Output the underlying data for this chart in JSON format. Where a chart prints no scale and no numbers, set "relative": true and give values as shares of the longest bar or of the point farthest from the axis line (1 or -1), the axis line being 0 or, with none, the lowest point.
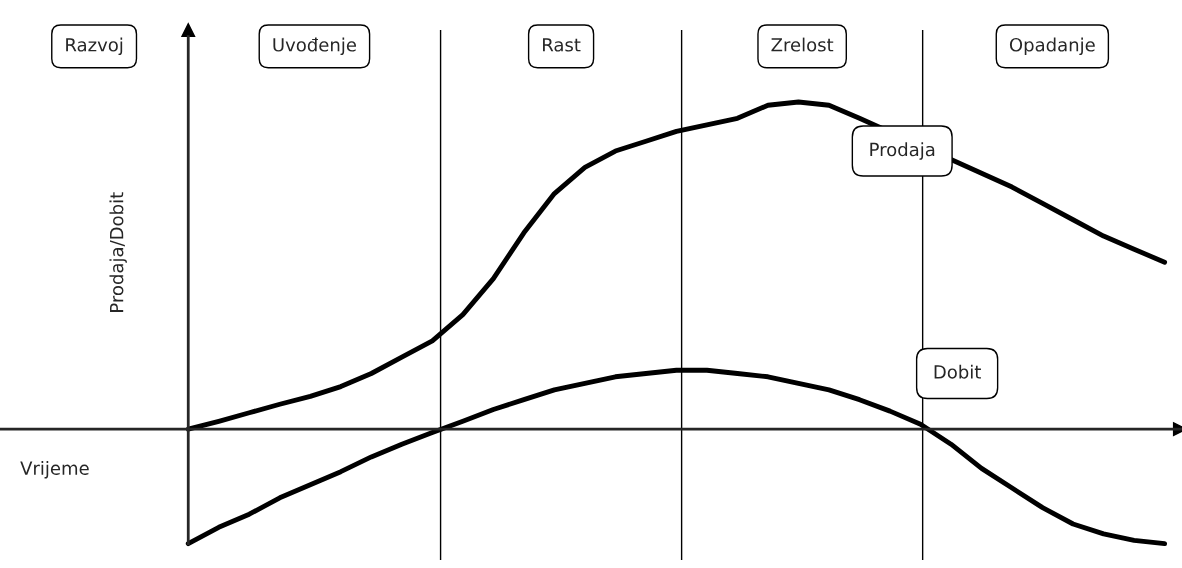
{
  "chart_data": {
    "type": "line",
    "relative": true,
    "xlabel": "Vrijeme",
    "ylabel": "Prodaja/Dobit",
    "categories": [
      null,
      null,
      null,
      null,
      null,
      null,
      null,
      null,
      null,
      null,
      null,
      null,
      null,
      null,
      null,
      null,
      null,
      null,
      null,
      null,
      null,
      null,
      null,
      null,
      null,
      null,
      null,
      null,
      null,
      null,
      null,
      null,
      null
    ],
    "series": [
      {
        "name": "Prodaja",
        "color": "#000000",
        "values": [
          0,
          0.024,
          0.05,
          0.076,
          0.1,
          0.13,
          0.17,
          0.22,
          0.27,
          0.35,
          0.46,
          0.6,
          0.72,
          0.8,
          0.85,
          0.88,
          0.91,
          0.93,
          0.95,
          0.99,
          1.0,
          0.99,
          0.95,
          null,
          null,
          null,
          null,
          0.74,
          0.69,
          0.64,
          0.59,
          0.55,
          0.51
        ]
      },
      {
        "name": "Dobit",
        "color": "#000000",
        "values": [
          -0.35,
          -0.3,
          -0.26,
          -0.21,
          -0.17,
          -0.13,
          -0.085,
          -0.046,
          -0.01,
          0.024,
          0.06,
          0.09,
          0.12,
          0.14,
          0.16,
          0.17,
          0.18,
          0.18,
          0.17,
          0.16,
          0.14,
          0.12,
          0.09,
          0.055,
          0.015,
          -0.046,
          -0.12,
          -0.18,
          -0.24,
          -0.29,
          -0.32,
          -0.34,
          -0.35
        ]
      }
    ],
    "annotations": [
      "Razvoj",
      "Uvođenje",
      "Rast",
      "Zrelost",
      "Opadanje"
    ],
    "legend": false,
    "marker": "none",
    "line_style": "solid"
  }
}
